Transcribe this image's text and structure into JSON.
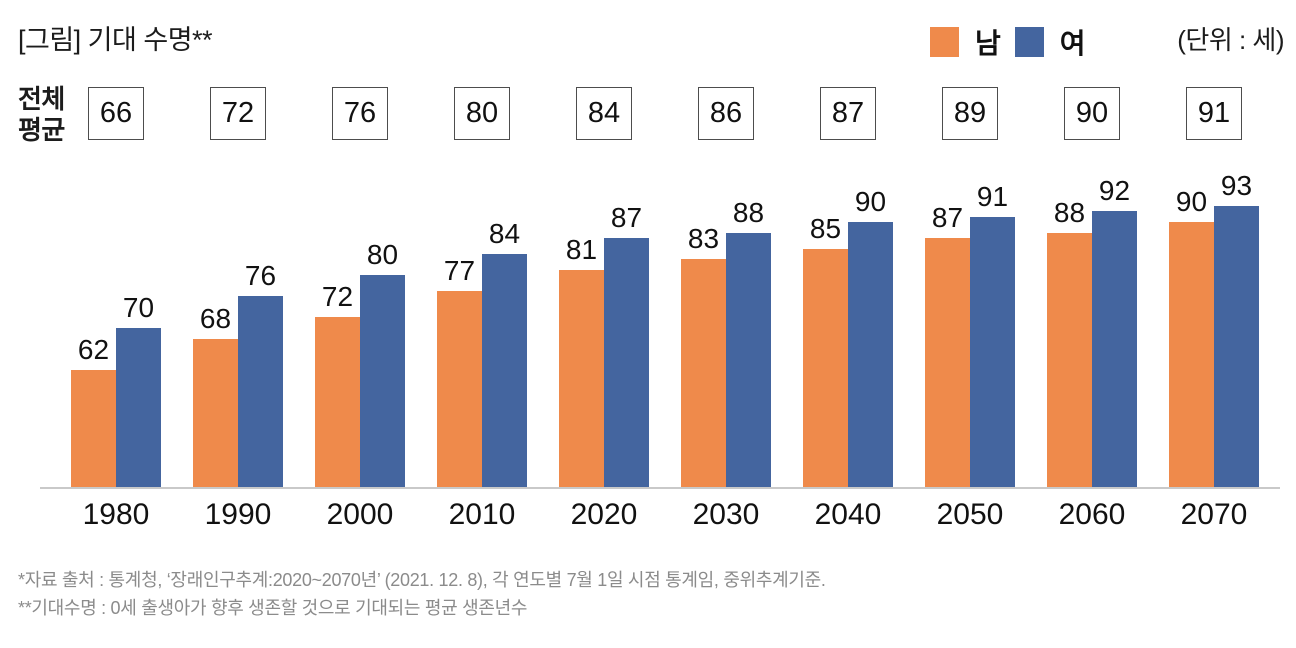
{
  "header": {
    "title": "[그림] 기대 수명**",
    "unit_label": "(단위 : 세)"
  },
  "average_row": {
    "label_line1": "전체",
    "label_line2": "평균",
    "values": [
      66,
      72,
      76,
      80,
      84,
      86,
      87,
      89,
      90,
      91
    ]
  },
  "chart_data": {
    "type": "bar",
    "title": "[그림] 기대 수명**",
    "unit": "(단위 : 세)",
    "categories": [
      "1980",
      "1990",
      "2000",
      "2010",
      "2020",
      "2030",
      "2040",
      "2050",
      "2060",
      "2070"
    ],
    "series": [
      {
        "name": "남",
        "color": "#EF8A4B",
        "values": [
          62,
          68,
          72,
          77,
          81,
          83,
          85,
          87,
          88,
          90
        ]
      },
      {
        "name": "여",
        "color": "#44659F",
        "values": [
          70,
          76,
          80,
          84,
          87,
          88,
          90,
          91,
          92,
          93
        ]
      }
    ],
    "overall_average": {
      "label": "전체 평균",
      "values": [
        66,
        72,
        76,
        80,
        84,
        86,
        87,
        89,
        90,
        91
      ]
    },
    "value_labels": true,
    "legend_position": "top-right",
    "baseline_value": 40,
    "axis_max_implied": 95,
    "grid": false
  },
  "colors": {
    "male": "#EF8A4B",
    "female": "#44659F",
    "baseline": "#c9c9c9",
    "footnote": "#8b8b8b",
    "box_border": "#4d4d4d"
  },
  "footnotes": [
    "*자료 출처 : 통계청, ‘장래인구추계:2020~2070년’ (2021. 12. 8), 각 연도별 7월 1일 시점 통계임, 중위추계기준.",
    "**기대수명 : 0세 출생아가 향후 생존할 것으로 기대되는 평균 생존년수"
  ]
}
